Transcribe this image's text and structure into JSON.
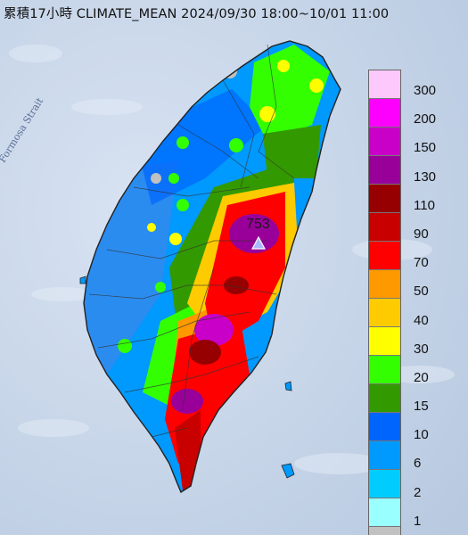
{
  "title": "累積17小時 CLIMATE_MEAN 2024/09/30 18:00~10/01 11:00",
  "strait_label": "Formosa Strait",
  "peak_value": "753",
  "legend": {
    "levels": [
      "300",
      "200",
      "150",
      "130",
      "110",
      "90",
      "70",
      "50",
      "40",
      "30",
      "20",
      "15",
      "10",
      "6",
      "2",
      "1"
    ],
    "colors": [
      "#fdc9fc",
      "#fd00fd",
      "#c900c8",
      "#990099",
      "#960000",
      "#c80000",
      "#fe0000",
      "#fe9900",
      "#fecb00",
      "#fefe00",
      "#33ff00",
      "#339900",
      "#0065fd",
      "#0099fe",
      "#00ccfe",
      "#99ffff",
      "#c1c1c1"
    ]
  }
}
